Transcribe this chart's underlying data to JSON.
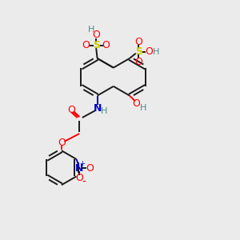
{
  "bg_color": "#ebebeb",
  "bond_color": "#1a1a1a",
  "bond_width": 1.4,
  "figsize": [
    3.0,
    3.0
  ],
  "dpi": 100,
  "colors": {
    "C": "#1a1a1a",
    "O": "#ff0000",
    "N": "#0000cc",
    "S": "#cccc00",
    "H": "#4a8a8a"
  }
}
